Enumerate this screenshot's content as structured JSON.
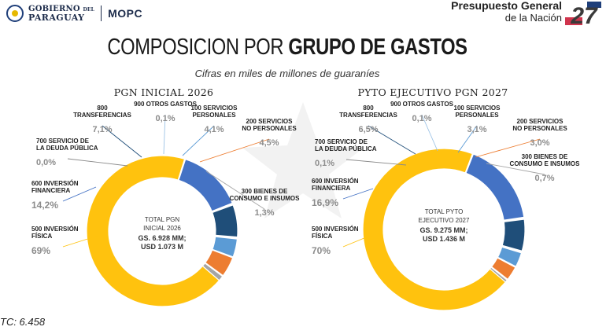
{
  "header": {
    "gov_line1": "GOBIERNO",
    "gov_line1_small": "DEL",
    "gov_line2": "PARAGUAY",
    "ministry": "MOPC",
    "budget_line1": "Presupuesto General",
    "budget_line2": "de la Nación",
    "badge_number": "27"
  },
  "title_light": "COMPOSICION POR ",
  "title_bold": "GRUPO DE GASTOS",
  "subtitle": "Cifras en miles de millones de guaraníes",
  "tc_note": "TC: 6.458",
  "colors": {
    "500": "#ffc20e",
    "600": "#4472c4",
    "700": "#8a8a8a",
    "800": "#1f4e79",
    "900": "#9dc3e6",
    "100": "#5b9bd5",
    "200": "#ed7d31",
    "300": "#a5a5a5"
  },
  "chart_data": [
    {
      "type": "pie",
      "title": "PGN INICIAL 2026",
      "center_text": [
        "TOTAL PGN",
        "INICIAL 2026",
        "GS. 6.928 MM;",
        "USD 1.073 M"
      ],
      "series": [
        {
          "code": "500",
          "label": [
            "500 INVERSIÓN",
            "FÍSICA"
          ],
          "value": 69,
          "value_label": "69%"
        },
        {
          "code": "600",
          "label": [
            "600 INVERSIÓN",
            "FINANCIERA"
          ],
          "value": 14.2,
          "value_label": "14,2%"
        },
        {
          "code": "700",
          "label": [
            "700 SERVICIO DE",
            "LA DEUDA PÚBLICA"
          ],
          "value": 0.0,
          "value_label": "0,0%"
        },
        {
          "code": "800",
          "label": [
            "800",
            "TRANSFERENCIAS"
          ],
          "value": 7.1,
          "value_label": "7,1%"
        },
        {
          "code": "900",
          "label": [
            "900 OTROS GASTOS"
          ],
          "value": 0.1,
          "value_label": "0,1%"
        },
        {
          "code": "100",
          "label": [
            "100 SERVICIOS",
            "PERSONALES"
          ],
          "value": 4.1,
          "value_label": "4,1%"
        },
        {
          "code": "200",
          "label": [
            "200 SERVICIOS",
            "NO PERSONALES"
          ],
          "value": 4.5,
          "value_label": "4,5%"
        },
        {
          "code": "300",
          "label": [
            "300 BIENES DE",
            "CONSUMO E INSUMOS"
          ],
          "value": 1.3,
          "value_label": "1,3%"
        }
      ]
    },
    {
      "type": "pie",
      "title": "PYTO EJECUTIVO PGN 2027",
      "center_text": [
        "TOTAL PYTO",
        "EJECUTIVO 2027",
        "GS. 9.275 MM;",
        "USD 1.436 M"
      ],
      "series": [
        {
          "code": "500",
          "label": [
            "500 INVERSIÓN",
            "FÍSICA"
          ],
          "value": 70,
          "value_label": "70%"
        },
        {
          "code": "600",
          "label": [
            "600 INVERSIÓN",
            "FINANCIERA"
          ],
          "value": 16.9,
          "value_label": "16,9%"
        },
        {
          "code": "700",
          "label": [
            "700 SERVICIO DE",
            "LA DEUDA PÚBLICA"
          ],
          "value": 0.1,
          "value_label": "0,1%"
        },
        {
          "code": "800",
          "label": [
            "800",
            "TRANSFERENCIAS"
          ],
          "value": 6.5,
          "value_label": "6,5%"
        },
        {
          "code": "900",
          "label": [
            "900 OTROS GASTOS"
          ],
          "value": 0.1,
          "value_label": "0,1%"
        },
        {
          "code": "100",
          "label": [
            "100 SERVICIOS",
            "PERSONALES"
          ],
          "value": 3.1,
          "value_label": "3,1%"
        },
        {
          "code": "200",
          "label": [
            "200 SERVICIOS",
            "NO PERSONALES"
          ],
          "value": 3.0,
          "value_label": "3,0%"
        },
        {
          "code": "300",
          "label": [
            "300 BIENES DE",
            "CONSUMO E INSUMOS"
          ],
          "value": 0.7,
          "value_label": "0,7%"
        }
      ]
    }
  ]
}
